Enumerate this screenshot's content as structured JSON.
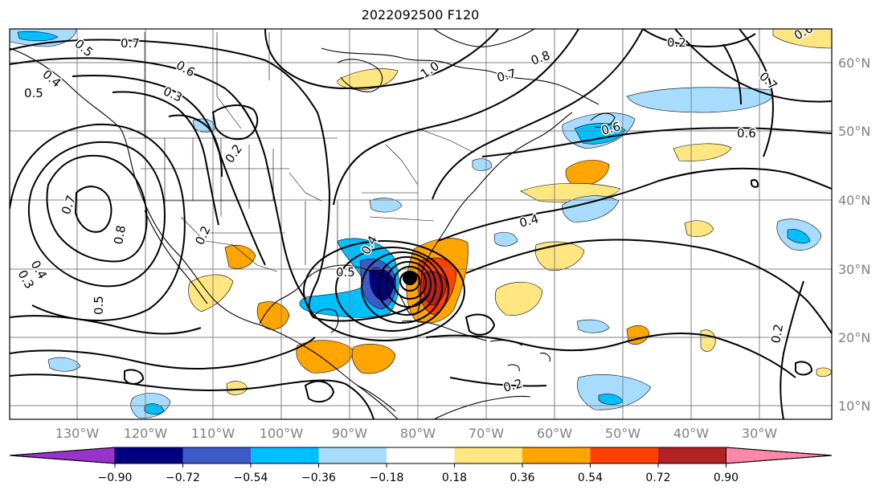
{
  "title": "2022092500 F120",
  "longitude_labels": [
    "130°W",
    "120°W",
    "110°W",
    "100°W",
    "90°W",
    "80°W",
    "70°W",
    "60°W",
    "50°W",
    "40°W",
    "30°W"
  ],
  "latitude_labels": [
    "60°N",
    "50°N",
    "40°N",
    "30°N",
    "20°N",
    "10°N"
  ],
  "contour_labels": [
    "0.7",
    "0.5",
    "0.5",
    "0.4",
    "0.6",
    "0.3",
    "0.2",
    "0.7",
    "0.8",
    "0.3",
    "0.4",
    "0.5",
    "0.2",
    "0.5",
    "0.4",
    "0.8",
    "1.0",
    "0.7",
    "0.6",
    "0.6",
    "0.4",
    "0.2",
    "0.7",
    "0.6",
    "0.2",
    "0.2"
  ],
  "colorbar": {
    "colors": [
      "#9933cc",
      "#000080",
      "#3c5ac8",
      "#00bfff",
      "#a8dcff",
      "#ffffff",
      "#ffe680",
      "#ffa500",
      "#ff4000",
      "#b22222",
      "#ff88aa"
    ],
    "tick_labels": [
      "−0.90",
      "−0.72",
      "−0.54",
      "−0.36",
      "−0.18",
      "0.18",
      "0.36",
      "0.54",
      "0.72",
      "0.90"
    ]
  }
}
